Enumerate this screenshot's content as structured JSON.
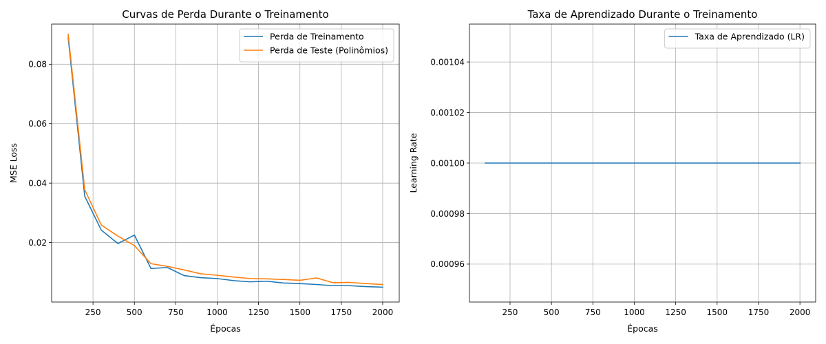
{
  "chart_data": [
    {
      "type": "line",
      "title": "Curvas de Perda Durante o Treinamento",
      "xlabel": "Épocas",
      "ylabel": "MSE Loss",
      "xlim": [
        0,
        2100
      ],
      "ylim": [
        0.0,
        0.0935
      ],
      "xticks": [
        250,
        500,
        750,
        1000,
        1250,
        1500,
        1750,
        2000
      ],
      "xtick_labels": [
        "250",
        "500",
        "750",
        "1000",
        "1250",
        "1500",
        "1750",
        "2000"
      ],
      "yticks": [
        0.02,
        0.04,
        0.06,
        0.08
      ],
      "ytick_labels": [
        "0.02",
        "0.04",
        "0.06",
        "0.08"
      ],
      "grid": true,
      "legend_position": "top-right",
      "series": [
        {
          "name": "Perda de Treinamento",
          "color": "#1f77b4",
          "x": [
            100,
            200,
            300,
            400,
            500,
            600,
            700,
            800,
            900,
            1000,
            1100,
            1200,
            1300,
            1400,
            1500,
            1600,
            1700,
            1800,
            1900,
            2000
          ],
          "y": [
            0.089,
            0.0356,
            0.0242,
            0.0197,
            0.0225,
            0.0113,
            0.0116,
            0.0089,
            0.0082,
            0.0079,
            0.0072,
            0.0068,
            0.007,
            0.0064,
            0.0062,
            0.0059,
            0.0055,
            0.0055,
            0.0052,
            0.005
          ]
        },
        {
          "name": "Perda de Teste (Polinômios)",
          "color": "#ff7f0e",
          "x": [
            100,
            200,
            300,
            400,
            500,
            600,
            700,
            800,
            900,
            1000,
            1100,
            1200,
            1300,
            1400,
            1500,
            1600,
            1700,
            1800,
            1900,
            2000
          ],
          "y": [
            0.0901,
            0.0378,
            0.0259,
            0.0222,
            0.019,
            0.0129,
            0.012,
            0.0108,
            0.0095,
            0.009,
            0.0084,
            0.0079,
            0.0078,
            0.0076,
            0.0073,
            0.0081,
            0.0065,
            0.0066,
            0.0062,
            0.0059
          ]
        }
      ]
    },
    {
      "type": "line",
      "title": "Taxa de Aprendizado Durante o Treinamento",
      "xlabel": "Épocas",
      "ylabel": "Learning Rate",
      "xlim": [
        5,
        2095
      ],
      "ylim": [
        0.000945,
        0.001055
      ],
      "xticks": [
        250,
        500,
        750,
        1000,
        1250,
        1500,
        1750,
        2000
      ],
      "xtick_labels": [
        "250",
        "500",
        "750",
        "1000",
        "1250",
        "1500",
        "1750",
        "2000"
      ],
      "yticks": [
        0.00096,
        0.00098,
        0.001,
        0.00102,
        0.00104
      ],
      "ytick_labels": [
        "0.00096",
        "0.00098",
        "0.00100",
        "0.00102",
        "0.00104"
      ],
      "grid": true,
      "legend_position": "top-right",
      "series": [
        {
          "name": "Taxa de Aprendizado (LR)",
          "color": "#1f77b4",
          "x": [
            100,
            2000
          ],
          "y": [
            0.001,
            0.001
          ]
        }
      ]
    }
  ]
}
